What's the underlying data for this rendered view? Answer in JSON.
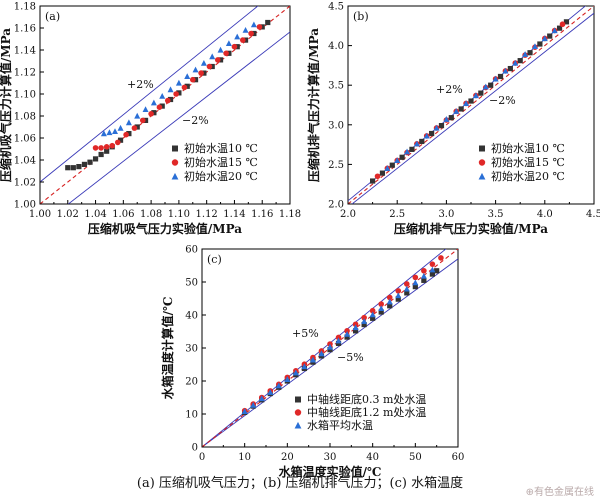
{
  "caption": "(a) 压缩机吸气压力；(b) 压缩机排气压力；(c) 水箱温度",
  "watermark": "有色金属在线",
  "colors": {
    "black_series": "#333333",
    "red_series": "#e02828",
    "blue_series": "#2a6fd6",
    "band_line": "#3a3ab8",
    "fit_line": "#d62020"
  },
  "chart_data": [
    {
      "type": "scatter",
      "panel_label": "(a)",
      "xlabel": "压缩机吸气压力实验值/MPa",
      "ylabel": "压缩机吸气压力计算值/MPa",
      "xlim": [
        1.0,
        1.18
      ],
      "ylim": [
        1.0,
        1.18
      ],
      "xticks": [
        "1.02",
        "1.04",
        "1.06",
        "1.08",
        "1.10",
        "1.12",
        "1.14",
        "1.16",
        "1.18"
      ],
      "yticks": [
        "1.00",
        "1.02",
        "1.04",
        "1.06",
        "1.08",
        "1.10",
        "1.12",
        "1.14",
        "1.16",
        "1.18"
      ],
      "x_origin_label": "1.00",
      "band_labels": {
        "plus": "+2%",
        "minus": "−2%"
      },
      "band_percent": 2,
      "legend_position": "bottom-right",
      "series": [
        {
          "name": "初始水温10 ℃",
          "marker": "square",
          "color": "#333333",
          "x": [
            1.02,
            1.024,
            1.028,
            1.032,
            1.036,
            1.04,
            1.044,
            1.048,
            1.052,
            1.058,
            1.064,
            1.07,
            1.076,
            1.082,
            1.088,
            1.094,
            1.1,
            1.106,
            1.112,
            1.118,
            1.124,
            1.13,
            1.136,
            1.142,
            1.148,
            1.154,
            1.16,
            1.164
          ],
          "y": [
            1.033,
            1.033,
            1.034,
            1.036,
            1.038,
            1.041,
            1.045,
            1.048,
            1.052,
            1.058,
            1.064,
            1.07,
            1.076,
            1.083,
            1.089,
            1.095,
            1.101,
            1.107,
            1.113,
            1.119,
            1.125,
            1.131,
            1.137,
            1.143,
            1.149,
            1.155,
            1.161,
            1.165
          ]
        },
        {
          "name": "初始水温15 ℃",
          "marker": "circle",
          "color": "#e02828",
          "x": [
            1.04,
            1.044,
            1.048,
            1.052,
            1.056,
            1.062,
            1.068,
            1.074,
            1.08,
            1.086,
            1.092,
            1.098,
            1.104,
            1.11,
            1.116,
            1.122,
            1.128,
            1.134,
            1.14,
            1.146,
            1.152,
            1.158
          ],
          "y": [
            1.051,
            1.051,
            1.052,
            1.053,
            1.056,
            1.063,
            1.069,
            1.076,
            1.082,
            1.088,
            1.094,
            1.1,
            1.106,
            1.113,
            1.119,
            1.125,
            1.131,
            1.137,
            1.143,
            1.149,
            1.155,
            1.161
          ]
        },
        {
          "name": "初始水温20 ℃",
          "marker": "triangle",
          "color": "#2a6fd6",
          "x": [
            1.046,
            1.05,
            1.054,
            1.058,
            1.064,
            1.07,
            1.076,
            1.082,
            1.088,
            1.094,
            1.1,
            1.106,
            1.112,
            1.118,
            1.124,
            1.13,
            1.136,
            1.142,
            1.148,
            1.154
          ],
          "y": [
            1.064,
            1.065,
            1.066,
            1.069,
            1.074,
            1.08,
            1.086,
            1.092,
            1.098,
            1.104,
            1.11,
            1.116,
            1.122,
            1.128,
            1.134,
            1.14,
            1.146,
            1.152,
            1.158,
            1.163
          ]
        }
      ]
    },
    {
      "type": "scatter",
      "panel_label": "(b)",
      "xlabel": "压缩机排气压力实验值/MPa",
      "ylabel": "压缩机排气压力计算值/MPa",
      "xlim": [
        2.0,
        4.5
      ],
      "ylim": [
        2.0,
        4.5
      ],
      "xticks": [
        "2.5",
        "3.0",
        "3.5",
        "4.0",
        "4.5"
      ],
      "yticks": [
        "2.0",
        "2.5",
        "3.0",
        "3.5",
        "4.0",
        "4.5"
      ],
      "x_origin_label": "2.0",
      "band_labels": {
        "plus": "+2%",
        "minus": "−2%"
      },
      "band_percent": 2,
      "legend_position": "bottom-right",
      "series": [
        {
          "name": "初始水温10 ℃",
          "marker": "square",
          "color": "#333333",
          "x": [
            2.25,
            2.35,
            2.45,
            2.55,
            2.65,
            2.75,
            2.85,
            2.95,
            3.05,
            3.15,
            3.25,
            3.35,
            3.45,
            3.55,
            3.65,
            3.75,
            3.85,
            3.95,
            4.05,
            4.15,
            4.22
          ],
          "y": [
            2.29,
            2.39,
            2.49,
            2.59,
            2.69,
            2.79,
            2.89,
            2.99,
            3.09,
            3.2,
            3.3,
            3.4,
            3.5,
            3.61,
            3.71,
            3.81,
            3.91,
            4.02,
            4.12,
            4.22,
            4.3
          ]
        },
        {
          "name": "初始水温15 ℃",
          "marker": "circle",
          "color": "#e02828",
          "x": [
            2.3,
            2.4,
            2.5,
            2.6,
            2.7,
            2.8,
            2.9,
            3.0,
            3.1,
            3.2,
            3.3,
            3.4,
            3.5,
            3.6,
            3.7,
            3.8,
            3.9,
            4.0,
            4.1,
            4.18
          ],
          "y": [
            2.35,
            2.45,
            2.55,
            2.65,
            2.76,
            2.86,
            2.96,
            3.06,
            3.17,
            3.27,
            3.37,
            3.47,
            3.58,
            3.68,
            3.78,
            3.88,
            3.98,
            4.09,
            4.19,
            4.27
          ]
        },
        {
          "name": "初始水温20 ℃",
          "marker": "triangle",
          "color": "#2a6fd6",
          "x": [
            2.4,
            2.5,
            2.6,
            2.7,
            2.8,
            2.9,
            3.0,
            3.1,
            3.2,
            3.3,
            3.4,
            3.5,
            3.6,
            3.7,
            3.8,
            3.9,
            4.0,
            4.1
          ],
          "y": [
            2.45,
            2.55,
            2.66,
            2.76,
            2.86,
            2.96,
            3.07,
            3.17,
            3.27,
            3.37,
            3.48,
            3.58,
            3.68,
            3.78,
            3.89,
            3.99,
            4.09,
            4.19
          ]
        }
      ]
    },
    {
      "type": "scatter",
      "panel_label": "(c)",
      "xlabel": "水箱温度实验值/℃",
      "ylabel": "水箱温度计算值/℃",
      "xlim": [
        0,
        60
      ],
      "ylim": [
        0,
        60
      ],
      "xticks": [
        "10",
        "20",
        "30",
        "40",
        "50",
        "60"
      ],
      "yticks": [
        "0",
        "10",
        "20",
        "30",
        "40",
        "50",
        "60"
      ],
      "x_origin_label": "0",
      "band_labels": {
        "plus": "+5%",
        "minus": "−5%"
      },
      "band_percent": 5,
      "legend_position": "bottom-right",
      "series": [
        {
          "name": "中轴线距底0.3 m处水温",
          "marker": "square",
          "color": "#333333",
          "x": [
            10,
            12,
            14,
            16,
            18,
            20,
            22,
            24,
            26,
            28,
            30,
            32,
            34,
            36,
            38,
            40,
            42,
            44,
            46,
            48,
            50,
            52,
            54,
            55
          ],
          "y": [
            10.5,
            12.4,
            14.3,
            16.2,
            18.1,
            20.0,
            21.9,
            23.8,
            25.7,
            27.6,
            29.5,
            31.4,
            33.3,
            35.2,
            37.1,
            39.0,
            40.9,
            42.8,
            44.8,
            46.7,
            48.6,
            50.5,
            52.4,
            53.4
          ]
        },
        {
          "name": "中轴线距底1.2 m处水温",
          "marker": "circle",
          "color": "#e02828",
          "x": [
            10,
            12,
            14,
            16,
            18,
            20,
            22,
            24,
            26,
            28,
            30,
            32,
            34,
            36,
            38,
            40,
            42,
            44,
            46,
            48,
            50,
            52,
            54,
            56
          ],
          "y": [
            11.0,
            13.0,
            15.0,
            17.0,
            19.0,
            21.1,
            23.1,
            25.1,
            27.1,
            29.1,
            31.2,
            33.2,
            35.2,
            37.2,
            39.2,
            41.3,
            43.3,
            45.3,
            47.3,
            49.4,
            51.4,
            53.4,
            55.4,
            57.3
          ]
        },
        {
          "name": "水箱平均水温",
          "marker": "triangle",
          "color": "#2a6fd6",
          "x": [
            10,
            12,
            14,
            16,
            18,
            20,
            22,
            24,
            26,
            28,
            30,
            32,
            34,
            36,
            38,
            40,
            42,
            44,
            46,
            48,
            50,
            52,
            54
          ],
          "y": [
            10.8,
            12.7,
            14.7,
            16.6,
            18.6,
            20.5,
            22.5,
            24.4,
            26.4,
            28.3,
            30.3,
            32.2,
            34.2,
            36.2,
            38.1,
            40.1,
            42.0,
            44.0,
            45.9,
            47.9,
            49.8,
            51.8,
            53.7
          ]
        }
      ]
    }
  ]
}
